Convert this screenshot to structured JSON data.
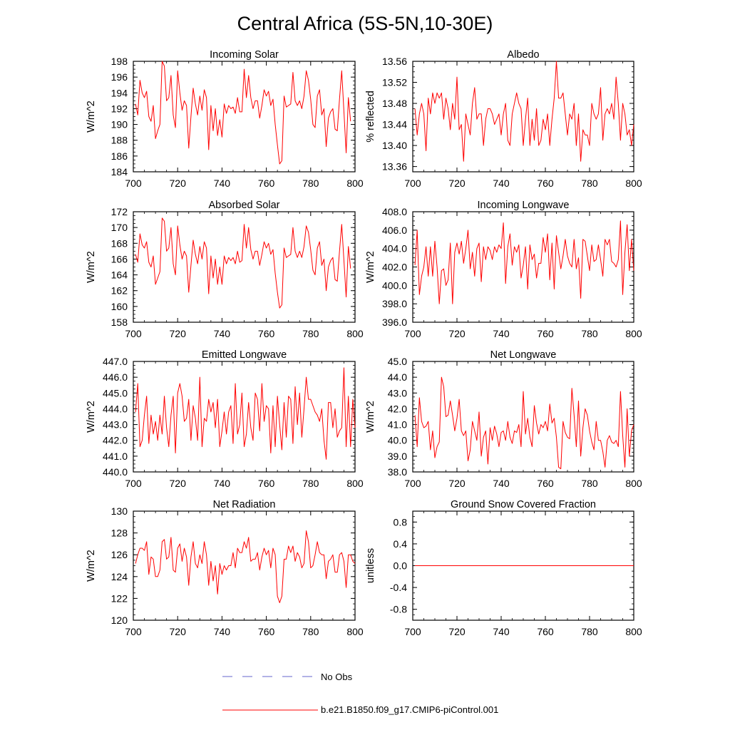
{
  "title": "Central Africa (5S-5N,10-30E)",
  "colors": {
    "series": "#ff0000",
    "obs": "#6666cc",
    "axis": "#000000",
    "background": "#ffffff"
  },
  "legend": {
    "obs_label": "No Obs",
    "series_label": "b.e21.B1850.f09_g17.CMIP6-piControl.001"
  },
  "chart_data": [
    {
      "type": "line",
      "title": "Incoming Solar",
      "ylabel": "W/m^2",
      "xlim": [
        700,
        800
      ],
      "ylim": [
        184,
        198
      ],
      "xticks": [
        700,
        720,
        740,
        760,
        780,
        800
      ],
      "xtick_labels": [
        "700",
        "720",
        "740",
        "760",
        "780",
        "800"
      ],
      "yticks": [
        184,
        186,
        188,
        190,
        192,
        194,
        196,
        198
      ],
      "ytick_labels": [
        "184",
        "186",
        "188",
        "190",
        "192",
        "194",
        "196",
        "198"
      ],
      "x_start": 701,
      "values": [
        192.6,
        191.2,
        195.6,
        194.0,
        193.4,
        194.2,
        191.0,
        190.4,
        192.4,
        188.2,
        189.2,
        190.0,
        198.0,
        197.4,
        193.0,
        193.4,
        196.2,
        191.2,
        189.6,
        196.8,
        194.0,
        191.8,
        193.0,
        192.4,
        187.0,
        191.0,
        194.6,
        192.6,
        191.2,
        193.6,
        191.8,
        194.4,
        193.4,
        186.8,
        192.4,
        189.2,
        192.0,
        188.6,
        190.6,
        188.4,
        192.6,
        191.4,
        192.4,
        192.0,
        192.2,
        191.4,
        193.4,
        191.6,
        191.6,
        197.0,
        193.4,
        196.2,
        193.4,
        192.0,
        193.0,
        193.0,
        190.8,
        192.4,
        194.4,
        193.6,
        194.2,
        192.4,
        193.2,
        190.0,
        187.4,
        185.0,
        185.4,
        193.6,
        192.2,
        192.4,
        192.6,
        196.6,
        193.0,
        192.4,
        193.0,
        192.0,
        193.6,
        196.8,
        195.6,
        193.2,
        190.0,
        189.6,
        193.6,
        194.4,
        191.2,
        192.0,
        187.2,
        190.8,
        191.6,
        192.0,
        189.4,
        189.2,
        193.2,
        196.8,
        191.6,
        186.4,
        193.4,
        190.4
      ]
    },
    {
      "type": "line",
      "title": "Albedo",
      "ylabel": "% reflected",
      "xlim": [
        700,
        800
      ],
      "ylim": [
        13.35,
        13.56
      ],
      "xticks": [
        700,
        720,
        740,
        760,
        780,
        800
      ],
      "xtick_labels": [
        "700",
        "720",
        "740",
        "760",
        "780",
        "800"
      ],
      "yticks": [
        13.36,
        13.4,
        13.44,
        13.48,
        13.52,
        13.56
      ],
      "ytick_labels": [
        "13.36",
        "13.40",
        "13.44",
        "13.48",
        "13.52",
        "13.56"
      ],
      "x_start": 701,
      "values": [
        13.47,
        13.42,
        13.46,
        13.48,
        13.46,
        13.39,
        13.49,
        13.46,
        13.5,
        13.48,
        13.5,
        13.49,
        13.5,
        13.45,
        13.49,
        13.47,
        13.43,
        13.48,
        13.45,
        13.53,
        13.43,
        13.44,
        13.37,
        13.46,
        13.44,
        13.42,
        13.48,
        13.51,
        13.45,
        13.46,
        13.46,
        13.4,
        13.45,
        13.47,
        13.47,
        13.46,
        13.44,
        13.45,
        13.46,
        13.42,
        13.46,
        13.48,
        13.41,
        13.4,
        13.46,
        13.48,
        13.5,
        13.48,
        13.47,
        13.4,
        13.45,
        13.49,
        13.4,
        13.45,
        13.41,
        13.47,
        13.4,
        13.41,
        13.45,
        13.43,
        13.46,
        13.4,
        13.45,
        13.49,
        13.56,
        13.49,
        13.49,
        13.5,
        13.46,
        13.42,
        13.46,
        13.45,
        13.48,
        13.4,
        13.46,
        13.37,
        13.43,
        13.42,
        13.42,
        13.4,
        13.48,
        13.46,
        13.45,
        13.46,
        13.51,
        13.41,
        13.46,
        13.47,
        13.46,
        13.48,
        13.45,
        13.53,
        13.48,
        13.41,
        13.48,
        13.46,
        13.42,
        13.43,
        13.4,
        13.44
      ]
    },
    {
      "type": "line",
      "title": "Absorbed Solar",
      "ylabel": "W/m^2",
      "xlim": [
        700,
        800
      ],
      "ylim": [
        158,
        172
      ],
      "xticks": [
        700,
        720,
        740,
        760,
        780,
        800
      ],
      "xtick_labels": [
        "700",
        "720",
        "740",
        "760",
        "780",
        "800"
      ],
      "yticks": [
        158,
        160,
        162,
        164,
        166,
        168,
        170,
        172
      ],
      "ytick_labels": [
        "158",
        "160",
        "162",
        "164",
        "166",
        "168",
        "170",
        "172"
      ],
      "x_start": 701,
      "values": [
        166.6,
        165.6,
        169.2,
        167.8,
        167.4,
        168.2,
        165.6,
        165.0,
        166.4,
        162.8,
        163.6,
        164.4,
        171.2,
        170.8,
        167.0,
        167.4,
        170.0,
        165.4,
        164.0,
        170.2,
        167.8,
        166.0,
        167.0,
        166.4,
        161.8,
        165.2,
        168.4,
        166.6,
        165.4,
        167.6,
        166.0,
        168.2,
        167.4,
        161.6,
        166.4,
        163.6,
        166.0,
        162.8,
        165.0,
        162.8,
        166.4,
        165.4,
        166.2,
        165.8,
        166.2,
        165.4,
        167.0,
        165.6,
        165.8,
        170.4,
        167.4,
        170.0,
        167.2,
        166.0,
        167.0,
        167.0,
        165.2,
        166.6,
        168.2,
        167.4,
        168.0,
        166.6,
        167.2,
        164.2,
        161.8,
        159.8,
        160.2,
        167.4,
        166.2,
        166.4,
        166.6,
        170.0,
        167.0,
        166.2,
        167.0,
        166.2,
        167.6,
        170.2,
        169.4,
        167.2,
        164.6,
        164.0,
        167.4,
        168.2,
        165.2,
        166.0,
        162.0,
        165.0,
        165.8,
        166.2,
        163.4,
        163.2,
        167.0,
        170.4,
        165.8,
        161.2,
        167.6,
        164.8
      ]
    },
    {
      "type": "line",
      "title": "Incoming Longwave",
      "ylabel": "W/m^2",
      "xlim": [
        700,
        800
      ],
      "ylim": [
        396,
        408
      ],
      "xticks": [
        700,
        720,
        740,
        760,
        780,
        800
      ],
      "xtick_labels": [
        "700",
        "720",
        "740",
        "760",
        "780",
        "800"
      ],
      "yticks": [
        396,
        398,
        400,
        402,
        404,
        406,
        408
      ],
      "ytick_labels": [
        "396.0",
        "398.0",
        "400.0",
        "402.0",
        "404.0",
        "406.0",
        "408.0"
      ],
      "x_start": 701,
      "values": [
        402.2,
        406.0,
        399.0,
        401.0,
        402.0,
        404.2,
        401.0,
        404.2,
        401.0,
        404.8,
        402.0,
        398.0,
        401.6,
        401.8,
        400.0,
        400.6,
        404.6,
        398.0,
        403.6,
        404.6,
        403.4,
        404.8,
        402.4,
        404.0,
        406.0,
        401.8,
        403.6,
        401.0,
        404.0,
        404.6,
        400.4,
        404.2,
        402.8,
        404.2,
        403.8,
        402.8,
        404.2,
        403.6,
        404.4,
        404.0,
        406.8,
        400.2,
        404.2,
        405.6,
        402.2,
        404.2,
        403.6,
        404.4,
        400.8,
        402.2,
        404.2,
        399.6,
        404.4,
        402.8,
        403.4,
        400.8,
        402.4,
        402.4,
        405.2,
        403.6,
        405.6,
        400.6,
        404.6,
        399.6,
        405.4,
        403.6,
        401.8,
        403.2,
        405.0,
        403.2,
        402.4,
        402.0,
        405.0,
        401.8,
        403.0,
        398.6,
        405.0,
        404.8,
        403.2,
        401.6,
        404.4,
        402.6,
        402.8,
        404.4,
        402.8,
        401.0,
        405.0,
        404.4,
        405.0,
        402.6,
        402.4,
        402.0,
        402.8,
        407.0,
        399.0,
        403.6,
        406.6,
        401.6,
        405.0,
        401.6
      ]
    },
    {
      "type": "line",
      "title": "Emitted Longwave",
      "ylabel": "W/m^2",
      "xlim": [
        700,
        800
      ],
      "ylim": [
        440,
        447
      ],
      "xticks": [
        700,
        720,
        740,
        760,
        780,
        800
      ],
      "xtick_labels": [
        "700",
        "720",
        "740",
        "760",
        "780",
        "800"
      ],
      "yticks": [
        440,
        441,
        442,
        443,
        444,
        445,
        446,
        447
      ],
      "ytick_labels": [
        "440.0",
        "441.0",
        "442.0",
        "443.0",
        "444.0",
        "445.0",
        "446.0",
        "447.0"
      ],
      "x_start": 701,
      "values": [
        443.8,
        445.6,
        441.6,
        442.0,
        443.6,
        444.8,
        441.8,
        443.6,
        442.4,
        443.2,
        442.0,
        443.6,
        442.4,
        444.8,
        442.8,
        441.6,
        443.6,
        444.8,
        441.2,
        445.0,
        445.6,
        444.8,
        443.2,
        443.4,
        444.6,
        442.0,
        444.2,
        443.4,
        442.0,
        446.0,
        441.6,
        443.4,
        443.2,
        444.6,
        443.8,
        444.4,
        442.8,
        444.6,
        441.6,
        442.6,
        443.8,
        442.4,
        443.8,
        444.2,
        441.8,
        445.6,
        442.4,
        443.0,
        445.0,
        441.6,
        442.4,
        444.4,
        442.8,
        442.0,
        445.0,
        444.6,
        442.6,
        445.6,
        443.2,
        444.2,
        444.0,
        441.2,
        444.2,
        441.6,
        444.8,
        443.0,
        441.4,
        444.4,
        442.2,
        444.8,
        444.6,
        441.8,
        445.4,
        443.0,
        445.0,
        442.2,
        444.0,
        446.0,
        444.6,
        444.6,
        444.2,
        443.8,
        443.6,
        443.2,
        444.0,
        442.0,
        440.8,
        444.4,
        444.4,
        442.8,
        444.0,
        442.2,
        442.6,
        442.8,
        446.6,
        441.6,
        444.8,
        441.6,
        444.6,
        442.8
      ]
    },
    {
      "type": "line",
      "title": "Net Longwave",
      "ylabel": "W/m^2",
      "xlim": [
        700,
        800
      ],
      "ylim": [
        38,
        45
      ],
      "xticks": [
        700,
        720,
        740,
        760,
        780,
        800
      ],
      "xtick_labels": [
        "700",
        "720",
        "740",
        "760",
        "780",
        "800"
      ],
      "yticks": [
        38,
        39,
        40,
        41,
        42,
        43,
        44,
        45
      ],
      "ytick_labels": [
        "38.0",
        "39.0",
        "40.0",
        "41.0",
        "42.0",
        "43.0",
        "44.0",
        "45.0"
      ],
      "x_start": 701,
      "values": [
        41.6,
        39.6,
        42.7,
        41.2,
        40.8,
        40.9,
        41.2,
        39.4,
        40.6,
        38.9,
        39.6,
        39.9,
        44.0,
        43.4,
        41.5,
        41.6,
        42.5,
        41.6,
        40.6,
        41.4,
        42.6,
        40.6,
        40.3,
        40.6,
        38.7,
        39.4,
        41.2,
        40.6,
        40.0,
        41.8,
        39.0,
        40.2,
        40.6,
        38.5,
        40.8,
        40.0,
        40.9,
        40.4,
        39.6,
        40.5,
        40.6,
        40.0,
        41.2,
        40.2,
        39.8,
        40.6,
        40.5,
        41.0,
        39.6,
        43.1,
        40.4,
        41.4,
        40.2,
        39.6,
        42.2,
        41.1,
        40.4,
        41.0,
        40.8,
        41.2,
        40.6,
        42.3,
        41.1,
        41.4,
        40.2,
        38.3,
        38.2,
        41.2,
        40.5,
        40.2,
        40.1,
        43.3,
        41.6,
        39.6,
        42.5,
        39.0,
        40.8,
        42.0,
        41.6,
        40.6,
        39.9,
        39.4,
        41.2,
        40.0,
        40.0,
        39.3,
        38.3,
        40.0,
        40.3,
        39.9,
        39.8,
        40.0,
        39.6,
        43.1,
        40.3,
        38.3,
        42.0,
        39.0,
        40.6,
        41.0
      ]
    },
    {
      "type": "line",
      "title": "Net Radiation",
      "ylabel": "W/m^2",
      "xlim": [
        700,
        800
      ],
      "ylim": [
        120,
        130
      ],
      "xticks": [
        700,
        720,
        740,
        760,
        780,
        800
      ],
      "xtick_labels": [
        "700",
        "720",
        "740",
        "760",
        "780",
        "800"
      ],
      "yticks": [
        120,
        122,
        124,
        126,
        128,
        130
      ],
      "ytick_labels": [
        "120",
        "122",
        "124",
        "126",
        "128",
        "130"
      ],
      "x_start": 701,
      "values": [
        125.2,
        126.0,
        126.6,
        126.6,
        126.4,
        127.2,
        124.2,
        125.8,
        125.6,
        124.0,
        124.0,
        124.6,
        127.2,
        127.4,
        125.6,
        125.8,
        127.6,
        124.6,
        124.4,
        126.6,
        127.0,
        125.4,
        126.6,
        125.8,
        123.2,
        125.8,
        127.2,
        125.2,
        124.8,
        126.0,
        125.2,
        127.2,
        126.0,
        123.2,
        125.4,
        123.6,
        125.0,
        122.4,
        125.2,
        124.2,
        125.0,
        124.6,
        125.0,
        125.0,
        126.2,
        124.8,
        126.6,
        126.2,
        126.2,
        127.2,
        126.6,
        127.6,
        125.4,
        125.6,
        125.6,
        126.2,
        124.6,
        125.8,
        126.6,
        126.0,
        126.4,
        124.8,
        126.6,
        126.0,
        122.2,
        121.6,
        122.2,
        125.6,
        125.6,
        126.8,
        126.2,
        126.8,
        125.4,
        126.2,
        125.8,
        124.8,
        125.2,
        128.2,
        127.2,
        124.8,
        125.0,
        126.0,
        127.2,
        126.2,
        126.0,
        126.0,
        123.8,
        125.4,
        125.6,
        126.0,
        124.4,
        124.4,
        126.0,
        126.2,
        125.4,
        123.0,
        126.0,
        126.0,
        125.4,
        125.2
      ]
    },
    {
      "type": "line",
      "title": "Ground Snow Covered Fraction",
      "ylabel": "unitless",
      "xlim": [
        700,
        800
      ],
      "ylim": [
        -1,
        1
      ],
      "xticks": [
        700,
        720,
        740,
        760,
        780,
        800
      ],
      "xtick_labels": [
        "700",
        "720",
        "740",
        "760",
        "780",
        "800"
      ],
      "yticks": [
        -0.8,
        -0.4,
        0.0,
        0.4,
        0.8
      ],
      "ytick_labels": [
        "-0.8",
        "-0.4",
        "0.0",
        "0.4",
        "0.8"
      ],
      "x_start": 701,
      "constant": 0.0,
      "count": 100
    }
  ]
}
